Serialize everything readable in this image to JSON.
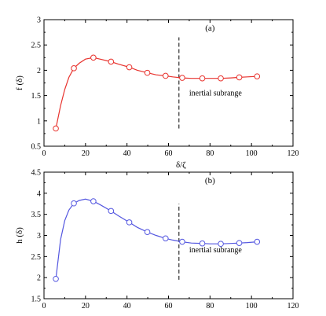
{
  "chart_data": [
    {
      "type": "line",
      "panel_label": "(a)",
      "ylabel": "f (δ)",
      "xlabel": "δ/ζ",
      "xlim": [
        0,
        120
      ],
      "ylim": [
        0.5,
        3
      ],
      "xticks": [
        0,
        20,
        40,
        60,
        80,
        100,
        120
      ],
      "yticks": [
        0.5,
        1,
        1.5,
        2,
        2.5,
        3
      ],
      "color": "#e8332e",
      "markers": {
        "x": [
          5.7,
          14.4,
          23.8,
          32.3,
          41.1,
          49.8,
          58.6,
          66.6,
          76.3,
          85.2,
          94.1,
          102.7
        ],
        "y": [
          0.85,
          2.04,
          2.25,
          2.17,
          2.06,
          1.95,
          1.89,
          1.85,
          1.84,
          1.84,
          1.86,
          1.88
        ]
      },
      "curve": {
        "x": [
          5.7,
          8,
          10,
          12,
          14.4,
          17,
          20,
          23.8,
          27,
          32.3,
          36,
          41.1,
          45,
          49.8,
          54,
          58.6,
          62,
          66.6,
          71,
          76.3,
          80,
          85.2,
          90,
          94.1,
          98,
          102.7
        ],
        "y": [
          0.85,
          1.3,
          1.62,
          1.86,
          2.04,
          2.14,
          2.22,
          2.25,
          2.22,
          2.17,
          2.12,
          2.06,
          2.0,
          1.95,
          1.91,
          1.89,
          1.87,
          1.85,
          1.84,
          1.84,
          1.84,
          1.84,
          1.85,
          1.86,
          1.87,
          1.88
        ]
      },
      "vline": {
        "x": 65,
        "y0": 0.85,
        "y1": 2.65
      },
      "annotation": {
        "text": "inertial subrange",
        "x": 70,
        "y": 1.5
      }
    },
    {
      "type": "line",
      "panel_label": "(b)",
      "ylabel": "h (δ)",
      "xlabel": "",
      "xlim": [
        0,
        120
      ],
      "ylim": [
        1.5,
        4.5
      ],
      "xticks": [
        0,
        20,
        40,
        60,
        80,
        100,
        120
      ],
      "yticks": [
        1.5,
        2,
        2.5,
        3,
        3.5,
        4,
        4.5
      ],
      "color": "#5457e0",
      "markers": {
        "x": [
          5.7,
          14.4,
          23.8,
          32.3,
          41.1,
          49.8,
          58.6,
          66.6,
          76.3,
          85.2,
          94.1,
          102.7
        ],
        "y": [
          1.97,
          3.76,
          3.81,
          3.58,
          3.31,
          3.08,
          2.93,
          2.85,
          2.81,
          2.8,
          2.82,
          2.85
        ]
      },
      "curve": {
        "x": [
          5.7,
          8,
          10,
          12,
          14.4,
          17,
          20,
          23.8,
          27,
          32.3,
          36,
          41.1,
          45,
          49.8,
          54,
          58.6,
          62,
          66.6,
          71,
          76.3,
          80,
          85.2,
          90,
          94.1,
          98,
          102.7
        ],
        "y": [
          1.97,
          2.9,
          3.35,
          3.6,
          3.76,
          3.83,
          3.86,
          3.81,
          3.73,
          3.58,
          3.46,
          3.31,
          3.19,
          3.08,
          3.0,
          2.93,
          2.89,
          2.85,
          2.82,
          2.81,
          2.8,
          2.8,
          2.81,
          2.82,
          2.83,
          2.85
        ]
      },
      "vline": {
        "x": 65,
        "y0": 1.95,
        "y1": 3.75
      },
      "annotation": {
        "text": "inertial subrange",
        "x": 70,
        "y": 2.6
      }
    }
  ]
}
